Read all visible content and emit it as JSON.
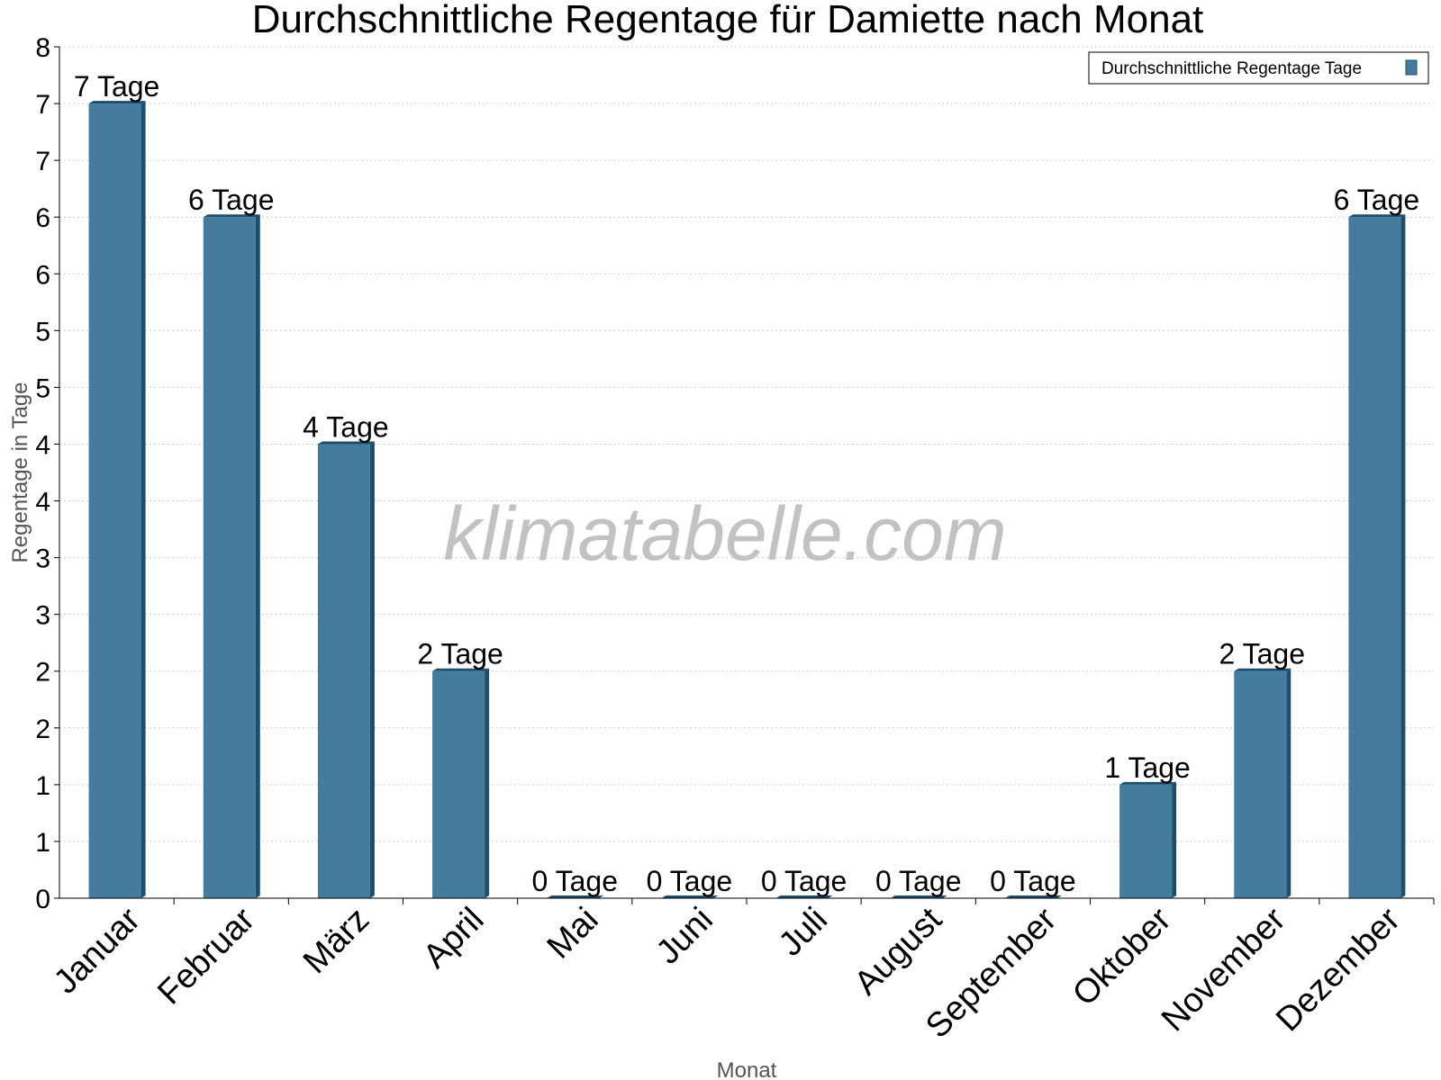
{
  "chart_data": {
    "type": "bar",
    "title": "Durchschnittliche Regentage für Damiette nach Monat",
    "xlabel": "Monat",
    "ylabel": "Regentage in Tage",
    "categories": [
      "Januar",
      "Februar",
      "März",
      "April",
      "Mai",
      "Juni",
      "Juli",
      "August",
      "September",
      "Oktober",
      "November",
      "Dezember"
    ],
    "series": [
      {
        "name": "Durchschnittliche Regentage Tage",
        "values": [
          7,
          6,
          4,
          2,
          0,
          0,
          0,
          0,
          0,
          1,
          2,
          6
        ],
        "labels": [
          "7 Tage",
          "6 Tage",
          "4 Tage",
          "2 Tage",
          "0 Tage",
          "0 Tage",
          "0 Tage",
          "0 Tage",
          "0 Tage",
          "1 Tage",
          "2 Tage",
          "6 Tage"
        ]
      }
    ],
    "ylim": [
      0,
      7.5
    ],
    "ytick_values": [
      0,
      0.5,
      1,
      1.5,
      2,
      2.5,
      3,
      3.5,
      4,
      4.5,
      5,
      5.5,
      6,
      6.5,
      7,
      7.5
    ],
    "ytick_labels": [
      "0",
      "1",
      "1",
      "2",
      "2",
      "3",
      "3",
      "4",
      "4",
      "5",
      "5",
      "6",
      "6",
      "7",
      "7",
      "8"
    ],
    "grid": true,
    "legend_position": "top-right",
    "colors": {
      "bar": "#457b9d",
      "bar_side": "#1d4e6e",
      "grid": "#cccccc"
    }
  },
  "watermark": "klimatabelle.com"
}
